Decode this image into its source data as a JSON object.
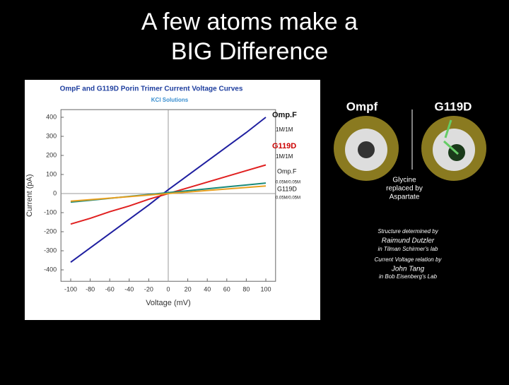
{
  "slide": {
    "title_lines": [
      "A few atoms make a",
      "BIG Difference"
    ],
    "structure_labels": [
      "Ompf",
      "G119D"
    ],
    "mutation_note": [
      "Glycine",
      "replaced by",
      "Aspartate"
    ],
    "credits": [
      "Structure determined by",
      "Raimund Dutzler",
      "in Tilman Schirmer's lab",
      "Current Voltage relation by",
      "John Tang",
      "in Bob Eisenberg's Lab"
    ]
  },
  "chart_data": {
    "type": "line",
    "title": "OmpF and G119D Porin Trimer Current Voltage Curves",
    "subtitle": "KCl Solutions",
    "x_label": "Voltage (mV)",
    "y_label": "Current (pA)",
    "x": [
      -100,
      -80,
      -60,
      -40,
      -20,
      0,
      20,
      40,
      60,
      80,
      100
    ],
    "xlim": [
      -110,
      110
    ],
    "xticks": [
      -100,
      -80,
      -60,
      -40,
      -20,
      0,
      20,
      40,
      60,
      80,
      100
    ],
    "ylim": [
      -460,
      440
    ],
    "yticks": [
      -400,
      -300,
      -200,
      -100,
      0,
      100,
      200,
      300,
      400
    ],
    "series": [
      {
        "name": "Omp.F",
        "concentration": "1M/1M",
        "color": "#1f1fa0",
        "values": [
          -360,
          -285,
          -210,
          -135,
          -60,
          20,
          95,
          170,
          245,
          320,
          400
        ]
      },
      {
        "name": "G119D",
        "concentration": "1M/1M",
        "color": "#e02020",
        "values": [
          -160,
          -130,
          -95,
          -65,
          -30,
          0,
          30,
          60,
          90,
          120,
          150
        ]
      },
      {
        "name": "Omp.F",
        "concentration": "0.05M/0.05M",
        "color": "#1a8a7a",
        "values": [
          -45,
          -35,
          -25,
          -15,
          -5,
          5,
          15,
          25,
          35,
          45,
          55
        ]
      },
      {
        "name": "G119D",
        "concentration": "0.05M/0.05M",
        "color": "#e8a020",
        "values": [
          -40,
          -32,
          -24,
          -16,
          -8,
          0,
          8,
          16,
          24,
          32,
          40
        ]
      }
    ]
  }
}
